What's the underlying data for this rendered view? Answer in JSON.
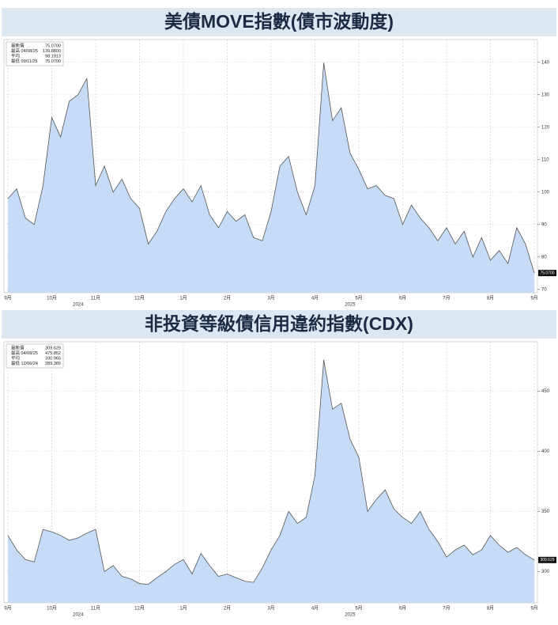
{
  "chart_data": [
    {
      "type": "area",
      "title": "美債MOVE指數(債市波動度)",
      "x_labels": [
        "9月",
        "10月",
        "11月",
        "12月",
        "1月",
        "2月",
        "3月",
        "4月",
        "5月",
        "6月",
        "7月",
        "8月",
        "9月"
      ],
      "year_labels": [
        "2024",
        "2025"
      ],
      "values": [
        98,
        101,
        92,
        90,
        102,
        123,
        117,
        128,
        130,
        135,
        102,
        108,
        100,
        104,
        98,
        95,
        84,
        88,
        94,
        98,
        101,
        97,
        102,
        93,
        89,
        94,
        91,
        93,
        86,
        85,
        94,
        108,
        111,
        100,
        93,
        102,
        139.88,
        122,
        126,
        112,
        107,
        101,
        102,
        99,
        98,
        90,
        96,
        92,
        89,
        85,
        89,
        84,
        88,
        80,
        86,
        79,
        82,
        78,
        89,
        84,
        75.07
      ],
      "color": "#c6dcf6",
      "line_color": "#555555",
      "ylim": [
        69,
        147
      ],
      "yticks": [
        70,
        80,
        90,
        100,
        110,
        120,
        130,
        140
      ],
      "grid": true,
      "stats": [
        {
          "label": "最新價",
          "value": "75.0700"
        },
        {
          "label": "最高 04/08/25",
          "value": "139.8800"
        },
        {
          "label": "平均",
          "value": "98.1913"
        },
        {
          "label": "最低 09/11/25",
          "value": "75.0700"
        }
      ]
    },
    {
      "type": "area",
      "title": "非投資等級債信用違約指數(CDX)",
      "x_labels": [
        "9月",
        "10月",
        "11月",
        "12月",
        "1月",
        "2月",
        "3月",
        "4月",
        "5月",
        "6月",
        "7月",
        "8月",
        "9月"
      ],
      "year_labels": [
        "2024",
        "2025"
      ],
      "values": [
        330,
        318,
        310,
        308,
        335,
        333,
        330,
        326,
        328,
        332,
        335,
        300,
        305,
        296,
        294,
        290,
        289.389,
        295,
        300,
        306,
        310,
        298,
        315,
        305,
        296,
        298,
        295,
        292,
        291,
        303,
        318,
        330,
        350,
        340,
        345,
        380,
        475.852,
        435,
        440,
        410,
        395,
        350,
        360,
        368,
        352,
        345,
        340,
        350,
        335,
        325,
        312,
        318,
        322,
        314,
        318,
        330,
        322,
        316,
        320,
        314,
        309.629
      ],
      "color": "#c6dcf6",
      "line_color": "#555555",
      "ylim": [
        274,
        491
      ],
      "yticks": [
        300,
        350,
        400,
        450
      ],
      "grid": true,
      "stats": [
        {
          "label": "最新價",
          "value": "309.629"
        },
        {
          "label": "最高 04/08/25",
          "value": "475.852"
        },
        {
          "label": "平均",
          "value": "330.965"
        },
        {
          "label": "最低 12/06/24",
          "value": "289.389"
        }
      ]
    }
  ]
}
